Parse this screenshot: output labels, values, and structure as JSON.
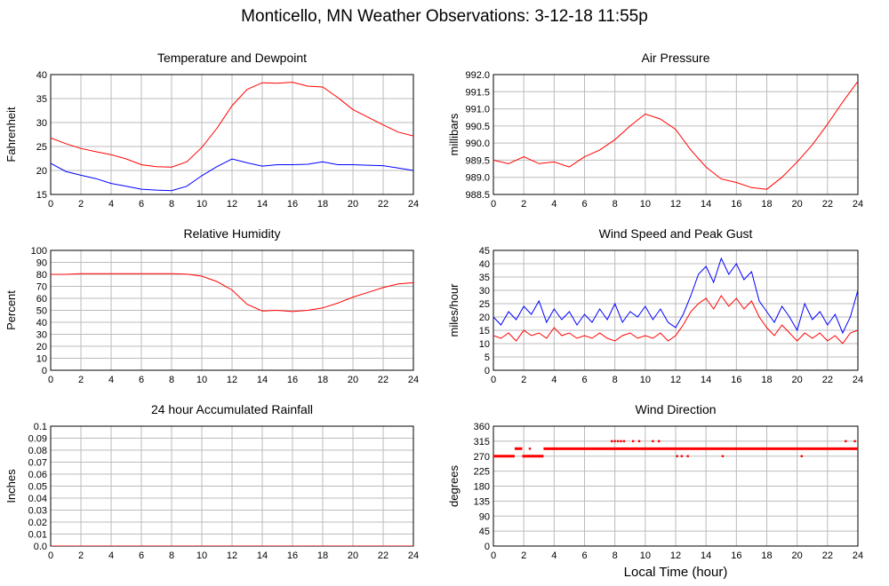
{
  "figure": {
    "title": "Monticello, MN Weather Observations: 3-12-18 11:55p",
    "xlabel": "Local Time (hour)",
    "colors": {
      "temperature": "#ff0000",
      "dewpoint": "#0000ff",
      "grid": "#bbbbbb"
    }
  },
  "chart_data": [
    {
      "id": "temp",
      "type": "line",
      "title": "Temperature and Dewpoint",
      "xlabel": "",
      "ylabel": "Fahrenheit",
      "xlim": [
        0,
        24
      ],
      "ylim": [
        15,
        40
      ],
      "xticks": [
        0,
        2,
        4,
        6,
        8,
        10,
        12,
        14,
        16,
        18,
        20,
        22,
        24
      ],
      "yticks": [
        "15",
        "20",
        "25",
        "30",
        "35",
        "40"
      ],
      "grid": true,
      "series": [
        {
          "color": "#ff0000",
          "x": [
            0,
            1,
            2,
            3,
            4,
            5,
            6,
            7,
            8,
            9,
            10,
            11,
            12,
            13,
            14,
            15,
            16,
            17,
            18,
            19,
            20,
            21,
            22,
            23,
            24
          ],
          "values": [
            26.8,
            25.6,
            24.6,
            23.9,
            23.3,
            22.4,
            21.2,
            20.8,
            20.7,
            21.8,
            24.8,
            28.8,
            33.5,
            36.9,
            38.3,
            38.2,
            38.4,
            37.6,
            37.4,
            35.2,
            32.7,
            31.1,
            29.5,
            28.0,
            27.2
          ]
        },
        {
          "color": "#0000ff",
          "x": [
            0,
            1,
            2,
            3,
            4,
            5,
            6,
            7,
            8,
            9,
            10,
            11,
            12,
            13,
            14,
            15,
            16,
            17,
            18,
            19,
            20,
            21,
            22,
            23,
            24
          ],
          "values": [
            21.5,
            19.8,
            19.0,
            18.3,
            17.3,
            16.7,
            16.1,
            15.9,
            15.8,
            16.7,
            18.9,
            20.8,
            22.4,
            21.6,
            20.9,
            21.2,
            21.2,
            21.3,
            21.8,
            21.2,
            21.2,
            21.1,
            21.0,
            20.5,
            20.0
          ]
        }
      ]
    },
    {
      "id": "pressure",
      "type": "line",
      "title": "Air Pressure",
      "xlabel": "",
      "ylabel": "millibars",
      "xlim": [
        0,
        24
      ],
      "ylim": [
        988.5,
        992.0
      ],
      "xticks": [
        0,
        2,
        4,
        6,
        8,
        10,
        12,
        14,
        16,
        18,
        20,
        22,
        24
      ],
      "yticks": [
        "988.5",
        "989.0",
        "989.5",
        "990.0",
        "990.5",
        "991.0",
        "991.5",
        "992.0"
      ],
      "grid": true,
      "series": [
        {
          "color": "#ff0000",
          "x": [
            0,
            1,
            2,
            3,
            4,
            5,
            6,
            7,
            8,
            9,
            10,
            11,
            12,
            13,
            14,
            15,
            16,
            17,
            18,
            19,
            20,
            21,
            22,
            23,
            24
          ],
          "values": [
            989.5,
            989.4,
            989.6,
            989.4,
            989.45,
            989.3,
            989.6,
            989.8,
            990.1,
            990.5,
            990.85,
            990.7,
            990.4,
            989.8,
            989.3,
            988.95,
            988.85,
            988.7,
            988.65,
            989.0,
            989.45,
            989.95,
            990.55,
            991.2,
            991.8
          ]
        }
      ]
    },
    {
      "id": "humidity",
      "type": "line",
      "title": "Relative Humidity",
      "xlabel": "",
      "ylabel": "Percent",
      "xlim": [
        0,
        24
      ],
      "ylim": [
        0,
        100
      ],
      "xticks": [
        0,
        2,
        4,
        6,
        8,
        10,
        12,
        14,
        16,
        18,
        20,
        22,
        24
      ],
      "yticks": [
        "0",
        "10",
        "20",
        "30",
        "40",
        "50",
        "60",
        "70",
        "80",
        "90",
        "100"
      ],
      "grid": true,
      "series": [
        {
          "color": "#ff0000",
          "x": [
            0,
            1,
            2,
            3,
            4,
            5,
            6,
            7,
            8,
            9,
            10,
            11,
            12,
            13,
            14,
            15,
            16,
            17,
            18,
            19,
            20,
            21,
            22,
            23,
            24
          ],
          "values": [
            80,
            80,
            80.5,
            80.5,
            80.5,
            80.5,
            80.5,
            80.5,
            80.5,
            80.2,
            78.5,
            74,
            67,
            55,
            49.5,
            50,
            49,
            50,
            52,
            56,
            61,
            65,
            69,
            72,
            73
          ]
        }
      ]
    },
    {
      "id": "wind",
      "type": "line",
      "title": "Wind Speed and Peak Gust",
      "xlabel": "",
      "ylabel": "miles/hour",
      "xlim": [
        0,
        24
      ],
      "ylim": [
        0,
        45
      ],
      "xticks": [
        0,
        2,
        4,
        6,
        8,
        10,
        12,
        14,
        16,
        18,
        20,
        22,
        24
      ],
      "yticks": [
        "0",
        "5",
        "10",
        "15",
        "20",
        "25",
        "30",
        "35",
        "40",
        "45"
      ],
      "grid": true,
      "series": [
        {
          "color": "#0000ff",
          "x": [
            0,
            0.5,
            1,
            1.5,
            2,
            2.5,
            3,
            3.5,
            4,
            4.5,
            5,
            5.5,
            6,
            6.5,
            7,
            7.5,
            8,
            8.5,
            9,
            9.5,
            10,
            10.5,
            11,
            11.5,
            12,
            12.5,
            13,
            13.5,
            14,
            14.5,
            15,
            15.5,
            16,
            16.5,
            17,
            17.5,
            18,
            18.5,
            19,
            19.5,
            20,
            20.5,
            21,
            21.5,
            22,
            22.5,
            23,
            23.5,
            24
          ],
          "values": [
            20,
            17,
            22,
            19,
            24,
            21,
            26,
            18,
            23,
            19,
            22,
            17,
            21,
            18,
            23,
            19,
            25,
            18,
            22,
            20,
            24,
            19,
            23,
            18,
            16,
            21,
            28,
            36,
            39,
            33,
            42,
            36,
            40,
            34,
            37,
            26,
            22,
            18,
            24,
            20,
            15,
            25,
            19,
            22,
            17,
            21,
            14,
            20,
            30
          ]
        },
        {
          "color": "#ff0000",
          "x": [
            0,
            0.5,
            1,
            1.5,
            2,
            2.5,
            3,
            3.5,
            4,
            4.5,
            5,
            5.5,
            6,
            6.5,
            7,
            7.5,
            8,
            8.5,
            9,
            9.5,
            10,
            10.5,
            11,
            11.5,
            12,
            12.5,
            13,
            13.5,
            14,
            14.5,
            15,
            15.5,
            16,
            16.5,
            17,
            17.5,
            18,
            18.5,
            19,
            19.5,
            20,
            20.5,
            21,
            21.5,
            22,
            22.5,
            23,
            23.5,
            24
          ],
          "values": [
            13,
            12,
            14,
            11,
            15,
            13,
            14,
            12,
            16,
            13,
            14,
            12,
            13,
            12,
            14,
            12,
            11,
            13,
            14,
            12,
            13,
            12,
            14,
            11,
            13,
            17,
            22,
            25,
            27,
            23,
            28,
            24,
            27,
            23,
            26,
            20,
            16,
            13,
            17,
            14,
            11,
            14,
            12,
            14,
            11,
            13,
            10,
            14,
            15
          ]
        }
      ]
    },
    {
      "id": "rain",
      "type": "line",
      "title": "24 hour Accumulated Rainfall",
      "xlabel": "",
      "ylabel": "Inches",
      "xlim": [
        0,
        24
      ],
      "ylim": [
        0,
        0.1
      ],
      "xticks": [
        0,
        2,
        4,
        6,
        8,
        10,
        12,
        14,
        16,
        18,
        20,
        22,
        24
      ],
      "yticks": [
        "0.0",
        "0.01",
        "0.02",
        "0.03",
        "0.04",
        "0.05",
        "0.06",
        "0.07",
        "0.08",
        "0.09",
        "0.1"
      ],
      "grid": true,
      "series": [
        {
          "color": "#ff0000",
          "x": [
            0,
            24
          ],
          "values": [
            0,
            0
          ]
        }
      ]
    },
    {
      "id": "direction",
      "type": "scatter",
      "title": "Wind Direction",
      "xlabel": "Local Time (hour)",
      "ylabel": "degrees",
      "xlim": [
        0,
        24
      ],
      "ylim": [
        0,
        360
      ],
      "xticks": [
        0,
        2,
        4,
        6,
        8,
        10,
        12,
        14,
        16,
        18,
        20,
        22,
        24
      ],
      "yticks": [
        "0",
        "45",
        "90",
        "135",
        "180",
        "225",
        "270",
        "315",
        "360"
      ],
      "grid": true,
      "segments": [
        {
          "x0": 0,
          "x1": 1.4,
          "y": 270
        },
        {
          "x0": 1.4,
          "x1": 1.9,
          "y": 292.5
        },
        {
          "x0": 1.9,
          "x1": 3.3,
          "y": 270
        },
        {
          "x0": 3.3,
          "x1": 24,
          "y": 292.5
        }
      ],
      "points": [
        {
          "x": 2.4,
          "y": 292.5
        },
        {
          "x": 7.8,
          "y": 315
        },
        {
          "x": 8.0,
          "y": 315
        },
        {
          "x": 8.2,
          "y": 315
        },
        {
          "x": 8.4,
          "y": 315
        },
        {
          "x": 8.6,
          "y": 315
        },
        {
          "x": 9.2,
          "y": 315
        },
        {
          "x": 9.6,
          "y": 315
        },
        {
          "x": 10.5,
          "y": 315
        },
        {
          "x": 10.9,
          "y": 315
        },
        {
          "x": 12.1,
          "y": 270
        },
        {
          "x": 12.4,
          "y": 270
        },
        {
          "x": 12.8,
          "y": 270
        },
        {
          "x": 15.1,
          "y": 270
        },
        {
          "x": 20.3,
          "y": 270
        },
        {
          "x": 23.2,
          "y": 315
        },
        {
          "x": 23.8,
          "y": 315
        }
      ]
    }
  ]
}
